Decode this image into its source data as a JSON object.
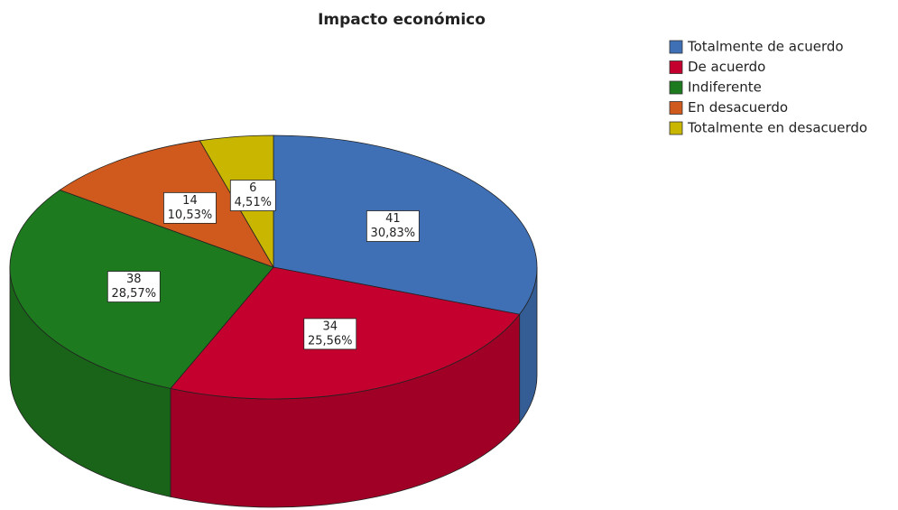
{
  "chart_data": {
    "type": "pie",
    "title": "Impacto económico",
    "categories": [
      "Totalmente de acuerdo",
      "De acuerdo",
      "Indiferente",
      "En desacuerdo",
      "Totalmente en desacuerdo"
    ],
    "values": [
      41,
      34,
      38,
      14,
      6
    ],
    "percentages": [
      30.83,
      25.56,
      28.57,
      10.53,
      4.51
    ],
    "percentage_labels": [
      "30,83%",
      "25,56%",
      "28,57%",
      "10,53%",
      "4,51%"
    ],
    "colors": [
      "#3f70b6",
      "#c4002e",
      "#1e7a1e",
      "#d05a1d",
      "#c8b600"
    ],
    "legend": "top-right"
  }
}
